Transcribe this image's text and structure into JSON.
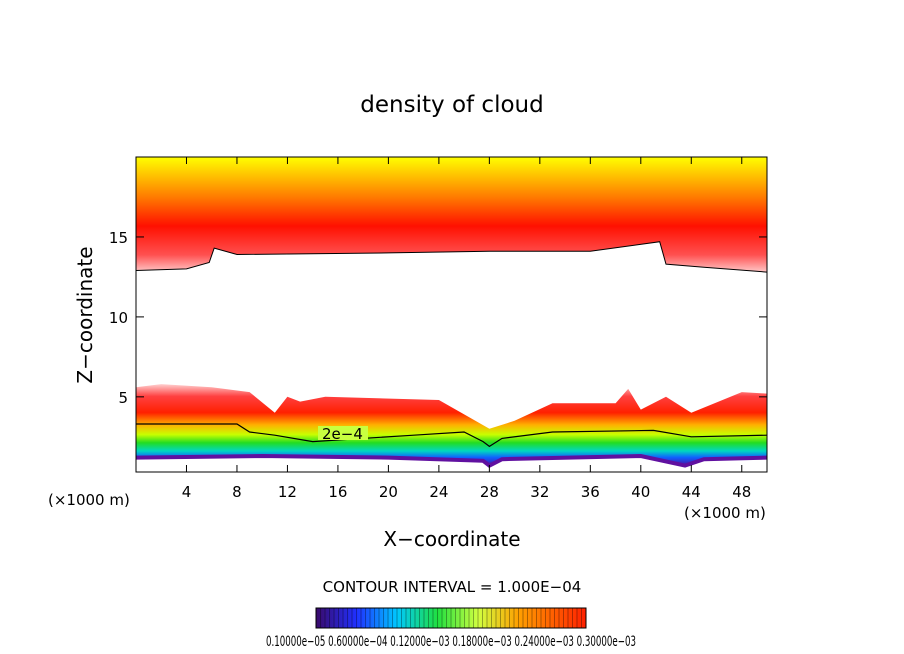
{
  "chart_data": {
    "type": "heatmap",
    "title": "density of cloud",
    "xlabel": "X−coordinate",
    "ylabel": "Z−coordinate",
    "x_unit": "(×1000 m)",
    "z_unit": "(×1000 m)",
    "xlim": [
      0,
      50
    ],
    "ylim": [
      0.3,
      20
    ],
    "x_ticks": [
      "4",
      "8",
      "12",
      "16",
      "20",
      "24",
      "28",
      "32",
      "36",
      "40",
      "44",
      "48"
    ],
    "y_ticks": [
      "5",
      "10",
      "15"
    ],
    "contour_label": "2e−4",
    "contour_interval_text": "CONTOUR INTERVAL = 1.000E−04",
    "colorbar_labels_text": "0.10000e−05 0.60000e−04 0.12000e−03 0.18000e−03 0.24000e−03 0.30000e−03",
    "colorbar_range": [
      1e-06,
      0.0003
    ],
    "colors": {
      "low": "#3a0a8a",
      "mid": "#22cc22",
      "high": "#ff1a00",
      "top": "#ffee00"
    },
    "upper_layer": {
      "clear_bottom": [
        [
          0,
          12.9
        ],
        [
          4,
          13.0
        ],
        [
          5.8,
          13.4
        ],
        [
          6.2,
          14.3
        ],
        [
          8,
          13.9
        ],
        [
          20,
          14.0
        ],
        [
          28,
          14.1
        ],
        [
          36,
          14.1
        ],
        [
          41.5,
          14.7
        ],
        [
          42,
          13.3
        ],
        [
          45,
          13.1
        ],
        [
          50,
          12.8
        ]
      ]
    },
    "lower_layer": {
      "cloud_top": [
        [
          0,
          5.6
        ],
        [
          2,
          5.8
        ],
        [
          6,
          5.6
        ],
        [
          9,
          5.3
        ],
        [
          11,
          4.0
        ],
        [
          12,
          5.0
        ],
        [
          13,
          4.7
        ],
        [
          15,
          5.0
        ],
        [
          24,
          4.8
        ],
        [
          28,
          3.0
        ],
        [
          30,
          3.5
        ],
        [
          33,
          4.6
        ],
        [
          38,
          4.6
        ],
        [
          39,
          5.5
        ],
        [
          40,
          4.2
        ],
        [
          42,
          5.0
        ],
        [
          44,
          4.0
        ],
        [
          48,
          5.3
        ],
        [
          50,
          5.2
        ]
      ],
      "cloud_bottom": [
        [
          0,
          1.2
        ],
        [
          10,
          1.3
        ],
        [
          20,
          1.2
        ],
        [
          27.5,
          1.0
        ],
        [
          28,
          0.7
        ],
        [
          29,
          1.1
        ],
        [
          40,
          1.3
        ],
        [
          43.5,
          0.7
        ],
        [
          45,
          1.1
        ],
        [
          50,
          1.2
        ]
      ],
      "contour_2e4": [
        [
          0,
          3.3
        ],
        [
          8,
          3.3
        ],
        [
          9,
          2.8
        ],
        [
          11,
          2.6
        ],
        [
          14,
          2.2
        ],
        [
          22,
          2.6
        ],
        [
          26,
          2.8
        ],
        [
          27.5,
          2.2
        ],
        [
          28,
          1.9
        ],
        [
          29,
          2.4
        ],
        [
          33,
          2.8
        ],
        [
          41,
          2.9
        ],
        [
          44,
          2.5
        ],
        [
          50,
          2.6
        ]
      ]
    }
  }
}
